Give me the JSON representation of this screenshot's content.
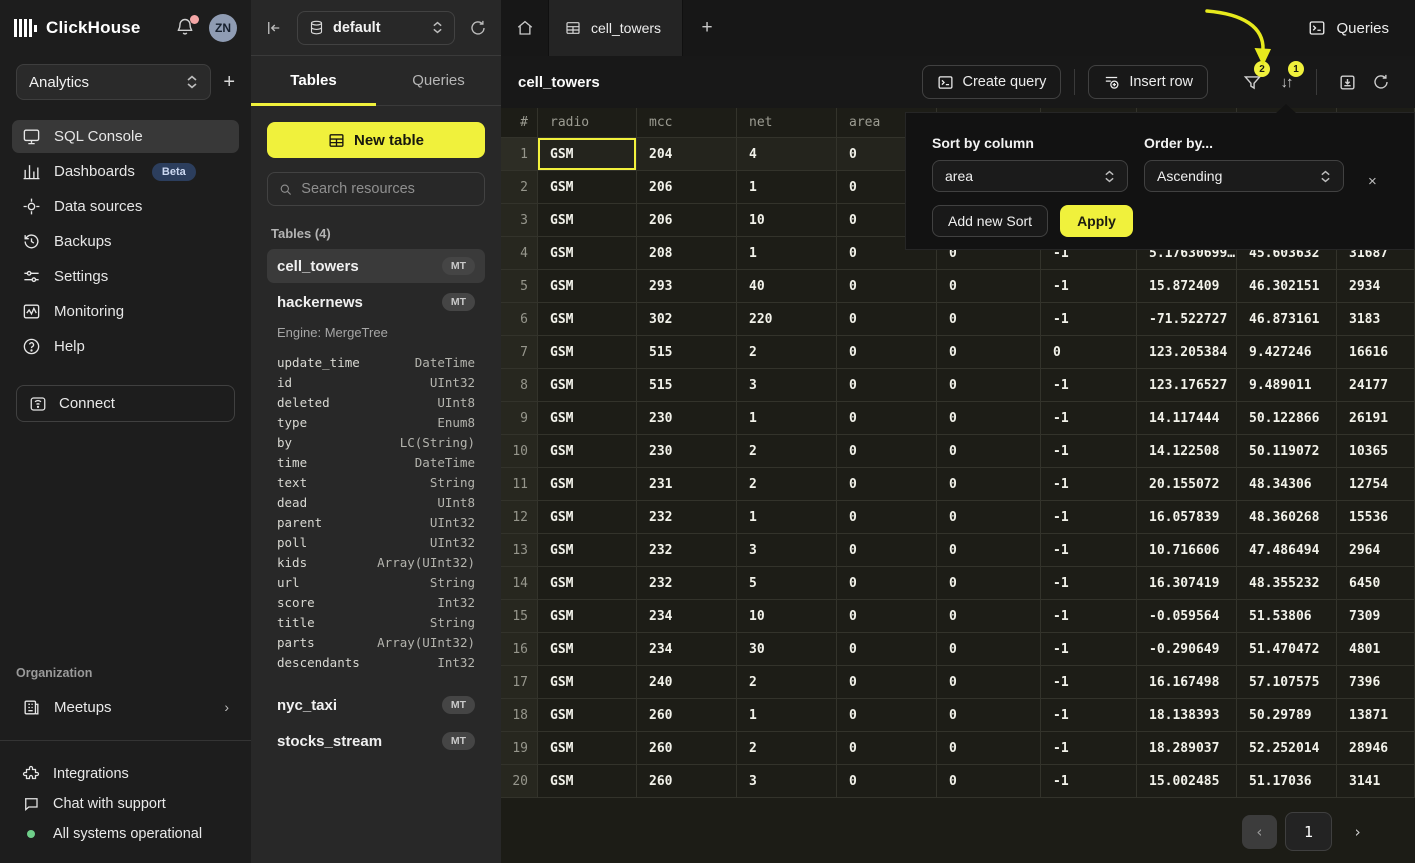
{
  "colors": {
    "accent": "#f0f13c",
    "beta_badge": "#2c3e5d",
    "status_green": "#6fcf8a",
    "notification_pink": "#f4a6a6",
    "avatar_bg": "#8f9cb3",
    "annotation_arrow": "#e7ea1d"
  },
  "icons": {
    "sort": "↓↑",
    "plus": "+",
    "close": "×",
    "prev": "‹",
    "next": "›"
  },
  "sidebar": {
    "brand": "ClickHouse",
    "avatar_initials": "ZN",
    "workspace": "Analytics",
    "nav": [
      {
        "label": "SQL Console"
      },
      {
        "label": "Dashboards",
        "badge": "Beta"
      },
      {
        "label": "Data sources"
      },
      {
        "label": "Backups"
      },
      {
        "label": "Settings"
      },
      {
        "label": "Monitoring"
      },
      {
        "label": "Help"
      }
    ],
    "connect_label": "Connect",
    "org": {
      "section_label": "Organization",
      "item": "Meetups"
    },
    "footer": {
      "integrations": "Integrations",
      "chat": "Chat with support",
      "status": "All systems operational"
    }
  },
  "explorer": {
    "database": "default",
    "tabs": {
      "tables": "Tables",
      "queries": "Queries"
    },
    "new_table_label": "New table",
    "search_placeholder": "Search resources",
    "section_label": "Tables (4)",
    "tables": [
      {
        "name": "cell_towers",
        "badge": "MT"
      },
      {
        "name": "hackernews",
        "badge": "MT",
        "engine": "Engine: MergeTree",
        "columns": [
          {
            "name": "update_time",
            "type": "DateTime"
          },
          {
            "name": "id",
            "type": "UInt32"
          },
          {
            "name": "deleted",
            "type": "UInt8"
          },
          {
            "name": "type",
            "type": "Enum8"
          },
          {
            "name": "by",
            "type": "LC(String)"
          },
          {
            "name": "time",
            "type": "DateTime"
          },
          {
            "name": "text",
            "type": "String"
          },
          {
            "name": "dead",
            "type": "UInt8"
          },
          {
            "name": "parent",
            "type": "UInt32"
          },
          {
            "name": "poll",
            "type": "UInt32"
          },
          {
            "name": "kids",
            "type": "Array(UInt32)"
          },
          {
            "name": "url",
            "type": "String"
          },
          {
            "name": "score",
            "type": "Int32"
          },
          {
            "name": "title",
            "type": "String"
          },
          {
            "name": "parts",
            "type": "Array(UInt32)"
          },
          {
            "name": "descendants",
            "type": "Int32"
          }
        ]
      },
      {
        "name": "nyc_taxi",
        "badge": "MT"
      },
      {
        "name": "stocks_stream",
        "badge": "MT"
      }
    ]
  },
  "main": {
    "active_tab": "cell_towers",
    "queries_label": "Queries",
    "title": "cell_towers",
    "toolbar": {
      "create_query_label": "Create query",
      "insert_row_label": "Insert row",
      "filter_badge": "2",
      "sort_badge": "1"
    },
    "grid": {
      "headers": [
        "#",
        "radio",
        "mcc",
        "net",
        "area",
        "",
        "",
        "",
        "",
        ""
      ],
      "selected_cell": {
        "row": 0,
        "col": 0
      },
      "rows": [
        [
          "GSM",
          "204",
          "4",
          "0",
          "",
          "",
          "",
          "",
          ""
        ],
        [
          "GSM",
          "206",
          "1",
          "0",
          "",
          "",
          "",
          "",
          ""
        ],
        [
          "GSM",
          "206",
          "10",
          "0",
          "",
          "",
          "",
          "",
          ""
        ],
        [
          "GSM",
          "208",
          "1",
          "0",
          "0",
          "-1",
          "5.17630699…",
          "45.603632",
          "31687"
        ],
        [
          "GSM",
          "293",
          "40",
          "0",
          "0",
          "-1",
          "15.872409",
          "46.302151",
          "2934"
        ],
        [
          "GSM",
          "302",
          "220",
          "0",
          "0",
          "-1",
          "-71.522727",
          "46.873161",
          "3183"
        ],
        [
          "GSM",
          "515",
          "2",
          "0",
          "0",
          "0",
          "123.205384",
          "9.427246",
          "16616"
        ],
        [
          "GSM",
          "515",
          "3",
          "0",
          "0",
          "-1",
          "123.176527",
          "9.489011",
          "24177"
        ],
        [
          "GSM",
          "230",
          "1",
          "0",
          "0",
          "-1",
          "14.117444",
          "50.122866",
          "26191"
        ],
        [
          "GSM",
          "230",
          "2",
          "0",
          "0",
          "-1",
          "14.122508",
          "50.119072",
          "10365"
        ],
        [
          "GSM",
          "231",
          "2",
          "0",
          "0",
          "-1",
          "20.155072",
          "48.34306",
          "12754"
        ],
        [
          "GSM",
          "232",
          "1",
          "0",
          "0",
          "-1",
          "16.057839",
          "48.360268",
          "15536"
        ],
        [
          "GSM",
          "232",
          "3",
          "0",
          "0",
          "-1",
          "10.716606",
          "47.486494",
          "2964"
        ],
        [
          "GSM",
          "232",
          "5",
          "0",
          "0",
          "-1",
          "16.307419",
          "48.355232",
          "6450"
        ],
        [
          "GSM",
          "234",
          "10",
          "0",
          "0",
          "-1",
          "-0.059564",
          "51.53806",
          "7309"
        ],
        [
          "GSM",
          "234",
          "30",
          "0",
          "0",
          "-1",
          "-0.290649",
          "51.470472",
          "4801"
        ],
        [
          "GSM",
          "240",
          "2",
          "0",
          "0",
          "-1",
          "16.167498",
          "57.107575",
          "7396"
        ],
        [
          "GSM",
          "260",
          "1",
          "0",
          "0",
          "-1",
          "18.138393",
          "50.29789",
          "13871"
        ],
        [
          "GSM",
          "260",
          "2",
          "0",
          "0",
          "-1",
          "18.289037",
          "52.252014",
          "28946"
        ],
        [
          "GSM",
          "260",
          "3",
          "0",
          "0",
          "-1",
          "15.002485",
          "51.17036",
          "3141"
        ]
      ]
    },
    "pagination": {
      "page": "1",
      "prev": "‹",
      "next": "›"
    }
  },
  "sort_popup": {
    "column_label": "Sort by column",
    "column_value": "area",
    "order_label": "Order by...",
    "order_value": "Ascending",
    "close": "×",
    "add_sort_label": "Add new Sort",
    "apply_label": "Apply"
  }
}
